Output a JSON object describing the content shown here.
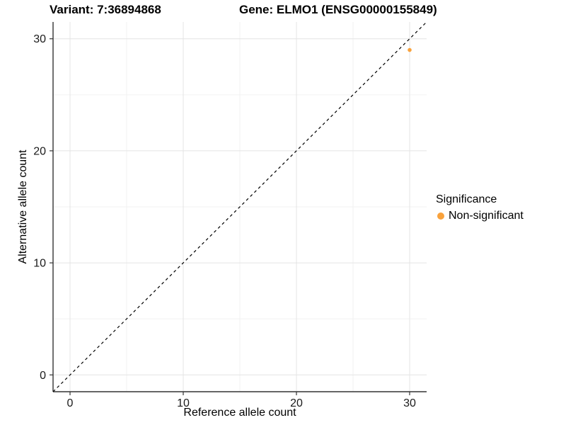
{
  "chart_data": {
    "type": "scatter",
    "title_left": "Variant: 7:36894868",
    "title_right": "Gene: ELMO1 (ENSG00000155849)",
    "xlabel": "Reference allele count",
    "ylabel": "Alternative allele count",
    "xlim": [
      -1.5,
      31.5
    ],
    "ylim": [
      -1.5,
      31.5
    ],
    "xticks": [
      0,
      10,
      20,
      30
    ],
    "yticks": [
      0,
      10,
      20,
      30
    ],
    "xminor": [
      5,
      15,
      25
    ],
    "yminor": [
      5,
      15,
      25
    ],
    "grid": "major+minor on white panel",
    "points": [
      {
        "x": 30,
        "y": 29,
        "series": "Non-significant"
      }
    ],
    "reference_line": {
      "slope": 1,
      "intercept": 0,
      "style": "dashed"
    },
    "legend": {
      "title": "Significance",
      "position": "right",
      "items": [
        {
          "label": "Non-significant",
          "color": "#F9A23C"
        }
      ]
    },
    "colors": {
      "point": "#F9A23C",
      "axis": "#333333",
      "tick_text": "#1a1a1a",
      "grid_major": "#E4E4E4",
      "grid_minor": "#F2F2F2",
      "reference_line": "#000000",
      "background": "#FFFFFF"
    }
  }
}
